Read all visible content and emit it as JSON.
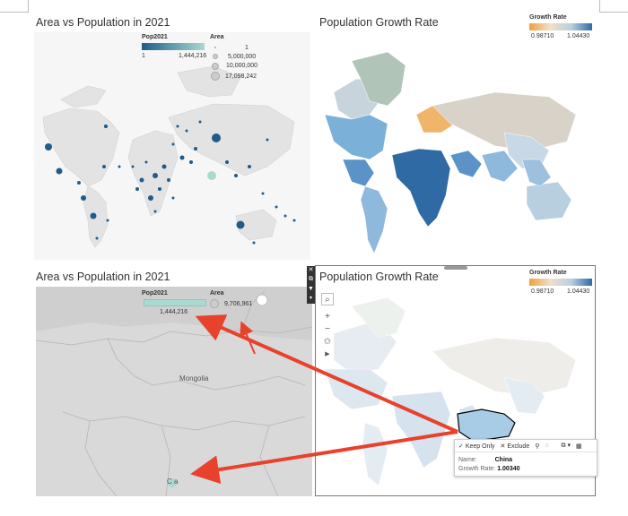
{
  "top_left": {
    "title": "Area vs Population in 2021",
    "pop_legend": {
      "title": "Pop2021",
      "min": "1",
      "max": "1,444,216"
    },
    "area_legend": {
      "title": "Area",
      "items": [
        "1",
        "5,000,000",
        "10,000,000",
        "17,098,242"
      ]
    }
  },
  "top_right": {
    "title": "Population Growth Rate",
    "legend": {
      "title": "Growth Rate",
      "min": "0.98710",
      "max": "1.04430"
    }
  },
  "bottom_left": {
    "title": "Area vs Population in 2021",
    "pop_legend": {
      "title": "Pop2021",
      "value": "1,444,216"
    },
    "area_legend": {
      "title": "Area",
      "value": "9,706,961"
    },
    "map_label": "Mongolia",
    "marker_label": "C  a"
  },
  "bottom_right": {
    "title": "Population Growth Rate",
    "legend": {
      "title": "Growth Rate",
      "min": "0.98710",
      "max": "1.04430"
    },
    "tooltip": {
      "keep_only": "Keep Only",
      "exclude": "Exclude",
      "name_key": "Name:",
      "name_value": "China",
      "rate_key": "Growth Rate:",
      "rate_value": "1.00340"
    }
  },
  "colors": {
    "pop_dark": "#1f5c8b",
    "pop_light": "#a8dad0",
    "growth_low": "#f0a040",
    "growth_high": "#2f6aa5",
    "arrow": "#e8412c",
    "land": "#e2e2e2"
  },
  "icons": [
    "search-icon",
    "plus-icon",
    "minus-icon",
    "pin-icon",
    "play-icon",
    "close-icon",
    "filter-icon",
    "popout-icon",
    "dropdown-icon",
    "paperclip-icon",
    "lightbulb-icon",
    "group-icon",
    "grid-icon"
  ]
}
